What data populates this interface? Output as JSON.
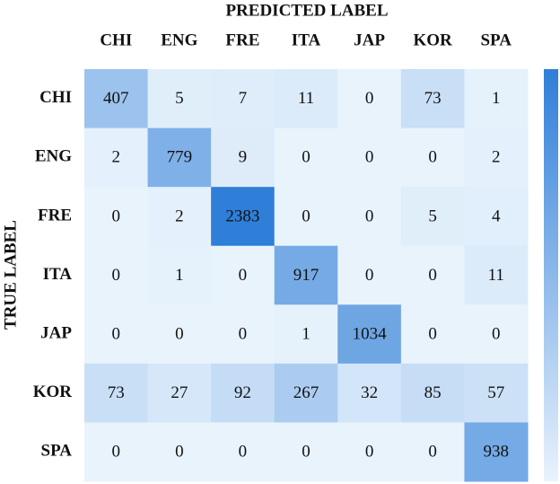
{
  "chart_data": {
    "type": "heatmap",
    "x_label": "PREDICTED LABEL",
    "y_label": "TRUE LABEL",
    "x_categories": [
      "CHI",
      "ENG",
      "FRE",
      "ITA",
      "JAP",
      "KOR",
      "SPA"
    ],
    "y_categories": [
      "CHI",
      "ENG",
      "FRE",
      "ITA",
      "JAP",
      "KOR",
      "SPA"
    ],
    "values": [
      [
        407,
        5,
        7,
        11,
        0,
        73,
        1
      ],
      [
        2,
        779,
        9,
        0,
        0,
        0,
        2
      ],
      [
        0,
        2,
        2383,
        0,
        0,
        5,
        4
      ],
      [
        0,
        1,
        0,
        917,
        0,
        0,
        11
      ],
      [
        0,
        0,
        0,
        1,
        1034,
        0,
        0
      ],
      [
        73,
        27,
        92,
        267,
        32,
        85,
        57
      ],
      [
        0,
        0,
        0,
        0,
        0,
        0,
        938
      ]
    ],
    "colormap": [
      "#e9f3fc",
      "#2f7ed8"
    ],
    "colorbar": true
  }
}
